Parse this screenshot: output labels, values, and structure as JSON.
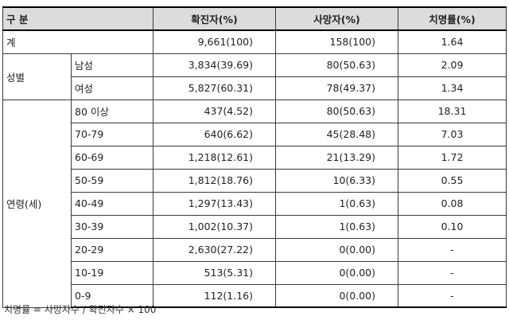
{
  "header": {
    "category": "구 분",
    "confirmed": "확진자(%)",
    "deaths": "사망자(%)",
    "fatality": "치명률(%)"
  },
  "total": {
    "label": "계",
    "confirmed": "9,661(100)",
    "deaths": "158(100)",
    "fatality": "1.64"
  },
  "sex": {
    "group": "성별",
    "rows": [
      {
        "label": "남성",
        "confirmed": "3,834(39.69)",
        "deaths": "80(50.63)",
        "fatality": "2.09"
      },
      {
        "label": "여성",
        "confirmed": "5,827(60.31)",
        "deaths": "78(49.37)",
        "fatality": "1.34"
      }
    ]
  },
  "age": {
    "group": "연령(세)",
    "rows": [
      {
        "label": "80 이상",
        "confirmed": "437(4.52)",
        "deaths": "80(50.63)",
        "fatality": "18.31"
      },
      {
        "label": "70-79",
        "confirmed": "640(6.62)",
        "deaths": "45(28.48)",
        "fatality": "7.03"
      },
      {
        "label": "60-69",
        "confirmed": "1,218(12.61)",
        "deaths": "21(13.29)",
        "fatality": "1.72"
      },
      {
        "label": "50-59",
        "confirmed": "1,812(18.76)",
        "deaths": "10(6.33)",
        "fatality": "0.55"
      },
      {
        "label": "40-49",
        "confirmed": "1,297(13.43)",
        "deaths": "1(0.63)",
        "fatality": "0.08"
      },
      {
        "label": "30-39",
        "confirmed": "1,002(10.37)",
        "deaths": "1(0.63)",
        "fatality": "0.10"
      },
      {
        "label": "20-29",
        "confirmed": "2,630(27.22)",
        "deaths": "0(0.00)",
        "fatality": "-"
      },
      {
        "label": "10-19",
        "confirmed": "513(5.31)",
        "deaths": "0(0.00)",
        "fatality": "-"
      },
      {
        "label": "0-9",
        "confirmed": "112(1.16)",
        "deaths": "0(0.00)",
        "fatality": "-"
      }
    ]
  },
  "footnote": "치명률 = 사망자수 / 확진자수 × 100"
}
